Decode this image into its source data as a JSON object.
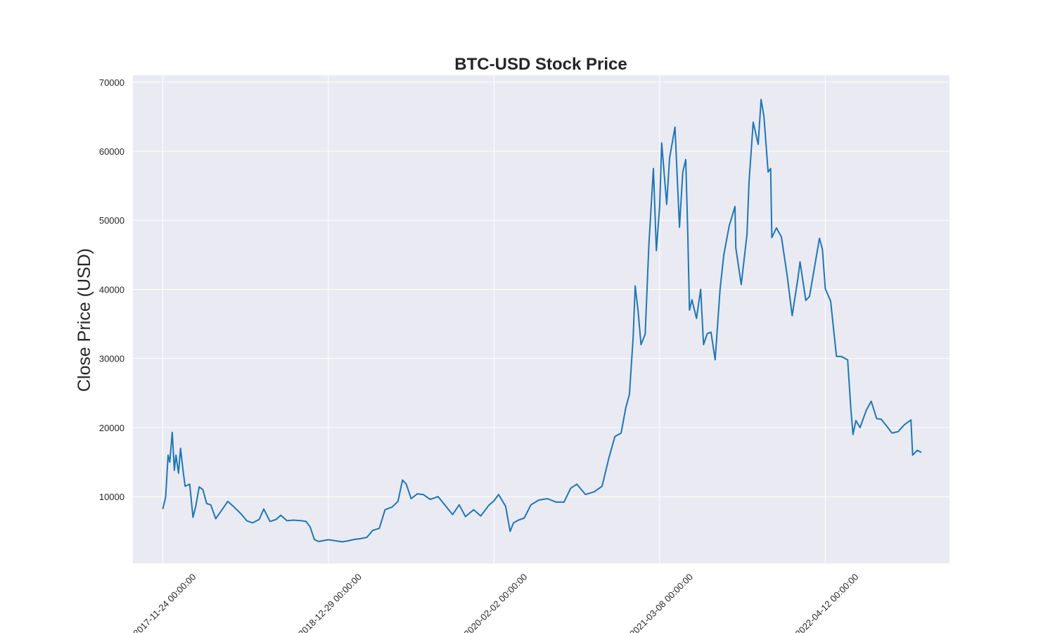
{
  "chart_data": {
    "type": "line",
    "title": "BTC-USD Stock Price",
    "xlabel": "",
    "ylabel": "Close Price (USD)",
    "xlim": [
      "2017-09-13",
      "2023-02-06"
    ],
    "ylim": [
      333,
      71000
    ],
    "yticks": [
      10000,
      20000,
      30000,
      40000,
      50000,
      60000,
      70000
    ],
    "xticks": [
      "2017-11-24 00:00:00",
      "2018-12-29 00:00:00",
      "2020-02-02 00:00:00",
      "2021-03-08 00:00:00",
      "2022-04-12 00:00:00"
    ],
    "grid": true,
    "line_color": "#1f77b4",
    "background_color": "#eaeaf2",
    "series": [
      {
        "x": [
          "2017-11-24",
          "2017-12-01",
          "2017-12-07",
          "2017-12-11",
          "2017-12-17",
          "2017-12-22",
          "2017-12-26",
          "2018-01-01",
          "2018-01-06",
          "2018-01-12",
          "2018-01-17",
          "2018-01-28",
          "2018-02-05",
          "2018-02-12",
          "2018-02-20",
          "2018-03-01",
          "2018-03-10",
          "2018-03-20",
          "2018-04-01",
          "2018-04-15",
          "2018-04-30",
          "2018-05-15",
          "2018-06-01",
          "2018-06-15",
          "2018-06-29",
          "2018-07-15",
          "2018-07-26",
          "2018-08-10",
          "2018-08-25",
          "2018-09-05",
          "2018-09-20",
          "2018-10-05",
          "2018-10-25",
          "2018-11-05",
          "2018-11-15",
          "2018-11-25",
          "2018-12-05",
          "2018-12-15",
          "2018-12-29",
          "2019-01-15",
          "2019-02-01",
          "2019-02-15",
          "2019-03-01",
          "2019-03-15",
          "2019-04-01",
          "2019-04-15",
          "2019-05-01",
          "2019-05-15",
          "2019-06-01",
          "2019-06-15",
          "2019-06-26",
          "2019-07-05",
          "2019-07-17",
          "2019-08-01",
          "2019-08-15",
          "2019-09-01",
          "2019-09-20",
          "2019-10-10",
          "2019-10-25",
          "2019-11-10",
          "2019-11-25",
          "2019-12-15",
          "2020-01-01",
          "2020-01-20",
          "2020-02-02",
          "2020-02-13",
          "2020-03-01",
          "2020-03-12",
          "2020-03-20",
          "2020-04-01",
          "2020-04-15",
          "2020-05-01",
          "2020-05-20",
          "2020-06-10",
          "2020-07-01",
          "2020-07-20",
          "2020-08-05",
          "2020-08-20",
          "2020-09-10",
          "2020-10-01",
          "2020-10-20",
          "2020-11-05",
          "2020-11-20",
          "2020-12-05",
          "2020-12-16",
          "2020-12-25",
          "2021-01-03",
          "2021-01-08",
          "2021-01-15",
          "2021-01-22",
          "2021-02-01",
          "2021-02-10",
          "2021-02-21",
          "2021-02-28",
          "2021-03-08",
          "2021-03-13",
          "2021-03-25",
          "2021-04-01",
          "2021-04-14",
          "2021-04-25",
          "2021-05-03",
          "2021-05-10",
          "2021-05-15",
          "2021-05-19",
          "2021-05-25",
          "2021-06-05",
          "2021-06-15",
          "2021-06-22",
          "2021-07-01",
          "2021-07-10",
          "2021-07-20",
          "2021-08-01",
          "2021-08-10",
          "2021-08-23",
          "2021-09-06",
          "2021-09-08",
          "2021-09-21",
          "2021-10-05",
          "2021-10-10",
          "2021-10-20",
          "2021-11-01",
          "2021-11-08",
          "2021-11-15",
          "2021-11-25",
          "2021-12-01",
          "2021-12-04",
          "2021-12-15",
          "2021-12-27",
          "2022-01-10",
          "2022-01-22",
          "2022-02-05",
          "2022-02-10",
          "2022-02-24",
          "2022-03-05",
          "2022-03-29",
          "2022-04-05",
          "2022-04-12",
          "2022-04-25",
          "2022-05-09",
          "2022-05-20",
          "2022-06-05",
          "2022-06-13",
          "2022-06-18",
          "2022-06-25",
          "2022-07-05",
          "2022-07-20",
          "2022-08-01",
          "2022-08-14",
          "2022-08-25",
          "2022-09-10",
          "2022-09-20",
          "2022-10-05",
          "2022-10-20",
          "2022-11-05",
          "2022-11-09",
          "2022-11-20",
          "2022-11-30"
        ],
        "y": [
          8200,
          9900,
          16000,
          15000,
          19300,
          13800,
          16000,
          13400,
          17000,
          13800,
          11500,
          11800,
          7000,
          8700,
          11400,
          11000,
          9000,
          8800,
          6800,
          8000,
          9300,
          8500,
          7500,
          6500,
          6200,
          6700,
          8200,
          6400,
          6700,
          7300,
          6500,
          6600,
          6500,
          6400,
          5600,
          3800,
          3500,
          3600,
          3750,
          3600,
          3450,
          3600,
          3800,
          3900,
          4100,
          5100,
          5400,
          8100,
          8500,
          9300,
          12400,
          11800,
          9700,
          10400,
          10300,
          9600,
          10000,
          8500,
          7400,
          8800,
          7100,
          8100,
          7200,
          8700,
          9400,
          10300,
          8600,
          4970,
          6200,
          6600,
          6900,
          8800,
          9500,
          9700,
          9200,
          9200,
          11200,
          11800,
          10300,
          10700,
          11500,
          15500,
          18700,
          19200,
          22800,
          24800,
          33000,
          40500,
          36800,
          32000,
          33500,
          46500,
          57500,
          45600,
          52000,
          61200,
          52300,
          59000,
          63500,
          49000,
          57000,
          58800,
          48000,
          37000,
          38500,
          35800,
          40000,
          32000,
          33600,
          33800,
          29800,
          40000,
          45000,
          49200,
          52000,
          46000,
          40700,
          48000,
          55600,
          64200,
          61000,
          67500,
          65000,
          57000,
          57500,
          47500,
          48900,
          47600,
          42000,
          36200,
          41600,
          44000,
          38400,
          39000,
          47400,
          45800,
          40100,
          38300,
          30300,
          30300,
          29800,
          22500,
          19000,
          21000,
          20000,
          22500,
          23800,
          21300,
          21200,
          20000,
          19200,
          19400,
          20400,
          21100,
          16000,
          16700,
          16400
        ]
      }
    ]
  }
}
